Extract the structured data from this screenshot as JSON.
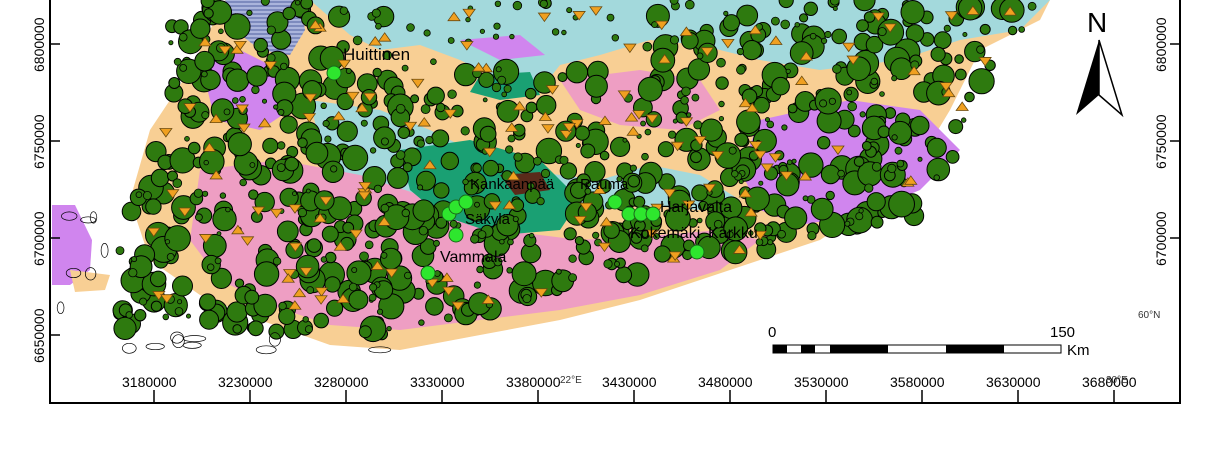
{
  "map": {
    "place_labels": [
      "Huittinen",
      "Kankaanpää",
      "Rauma",
      "Harjavalta",
      "Kokemäki",
      "Vammala",
      "Säkylä",
      "Karkku"
    ],
    "x_tick_labels": [
      "3180000",
      "3230000",
      "3280000",
      "3330000",
      "3380000",
      "3430000",
      "3480000",
      "3530000",
      "3580000",
      "3630000",
      "3680000"
    ],
    "y_tick_labels_left": [
      "6800000",
      "6750000",
      "6700000",
      "6650000"
    ],
    "y_tick_labels_right": [
      "6800000",
      "6750000",
      "6700000"
    ],
    "graticule_labels": {
      "lat": "60°N",
      "lon": "22°E",
      "lon_right": "30°E"
    },
    "north_arrow": {
      "letter": "N",
      "icon": "north-arrow-icon"
    },
    "scale_bar": {
      "start": "0",
      "end": "150",
      "unit": "Km"
    },
    "colors": {
      "outline": "#000000",
      "big_circle": "#2e7a0f",
      "bright_circle": "#2ee62e",
      "triangle": "#f0a020",
      "geo_peach": "#f8cf94",
      "geo_cyan": "#a3d9dc",
      "geo_pink": "#ee9ec3",
      "geo_violet": "#d085ee",
      "geo_teal": "#1aa073",
      "geo_slate": "#8090c0"
    }
  }
}
